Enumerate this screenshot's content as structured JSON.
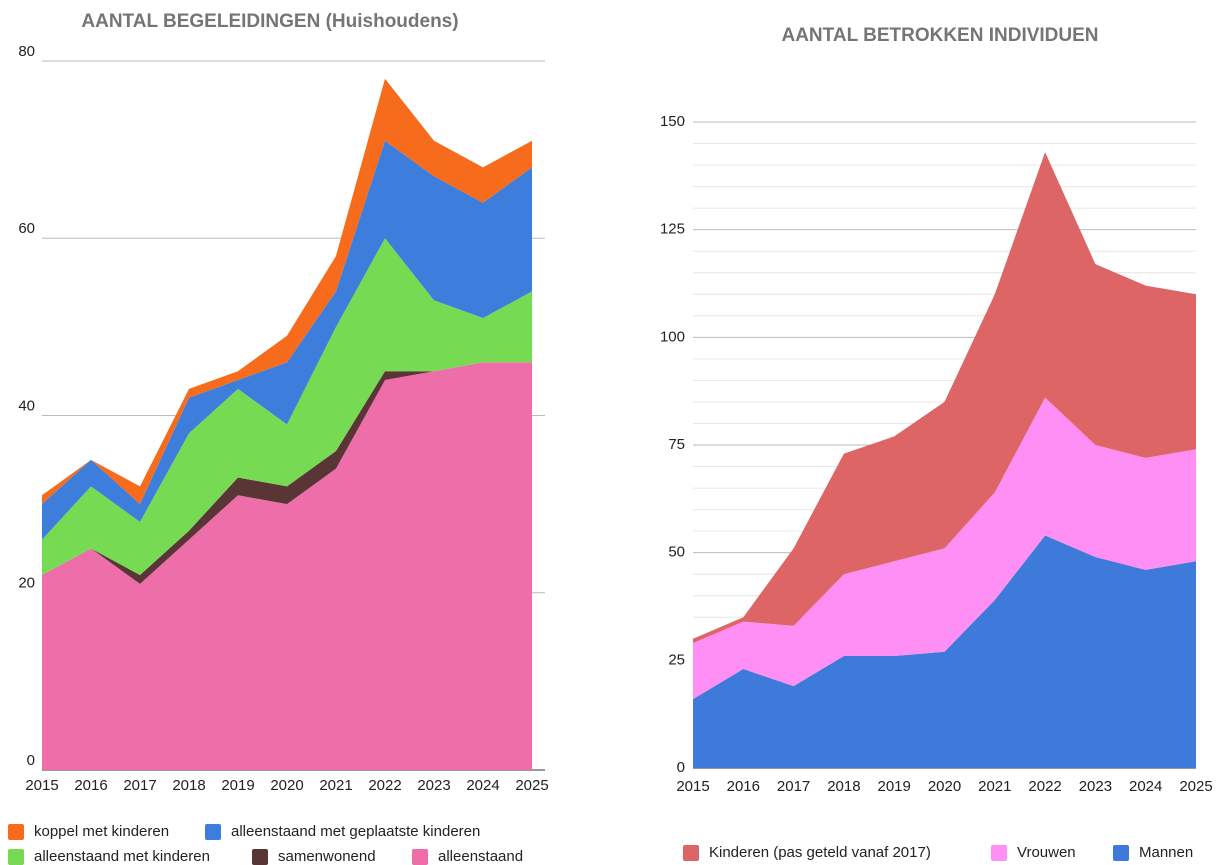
{
  "chart_data": [
    {
      "type": "stacked_area",
      "title": "AANTAL BEGELEIDINGEN (Huishoudens)",
      "categories": [
        "2015",
        "2016",
        "2017",
        "2018",
        "2019",
        "2020",
        "2021",
        "2022",
        "2023",
        "2024",
        "2025"
      ],
      "series": [
        {
          "name": "koppel met kinderen",
          "color": "#f76b1c",
          "values": [
            1,
            0,
            2,
            1,
            1,
            3,
            4,
            7,
            4,
            4,
            3
          ]
        },
        {
          "name": "alleenstaand met geplaatste kinderen",
          "color": "#3d7ddb",
          "values": [
            4,
            3,
            2,
            4,
            1,
            7,
            4,
            11,
            14,
            13,
            14
          ]
        },
        {
          "name": "alleenstaand met kinderen",
          "color": "#76db52",
          "values": [
            4,
            7,
            6,
            11,
            10,
            7,
            14,
            15,
            8,
            5,
            8
          ]
        },
        {
          "name": "samenwonend",
          "color": "#5a3535",
          "values": [
            0,
            0,
            1,
            1,
            2,
            2,
            2,
            1,
            0,
            0,
            0
          ]
        },
        {
          "name": "alleenstaand",
          "color": "#ee6ea9",
          "values": [
            22,
            25,
            21,
            26,
            31,
            30,
            34,
            44,
            45,
            46,
            46
          ]
        }
      ],
      "ylim": [
        0,
        80
      ],
      "yticks": [
        0,
        20,
        40,
        60,
        80
      ],
      "grid": true,
      "minor_grid": false,
      "legend": "bottom"
    },
    {
      "type": "stacked_area",
      "title": "AANTAL BETROKKEN INDIVIDUEN",
      "categories": [
        "2015",
        "2016",
        "2017",
        "2018",
        "2019",
        "2020",
        "2021",
        "2022",
        "2023",
        "2024",
        "2025"
      ],
      "series": [
        {
          "name": "Kinderen (pas geteld vanaf 2017)",
          "color": "#dd6565",
          "values": [
            1,
            1,
            18,
            28,
            29,
            34,
            46,
            57,
            42,
            40,
            36
          ]
        },
        {
          "name": "Vrouwen",
          "color": "#ff8ef5",
          "values": [
            13,
            11,
            14,
            19,
            22,
            24,
            25,
            32,
            26,
            26,
            26
          ]
        },
        {
          "name": "Mannen",
          "color": "#3d7ad9",
          "values": [
            16,
            23,
            19,
            26,
            26,
            27,
            39,
            54,
            49,
            46,
            48
          ]
        }
      ],
      "ylim": [
        0,
        150
      ],
      "yticks": [
        0,
        25,
        50,
        75,
        100,
        125,
        150
      ],
      "grid": true,
      "minor_grid": true,
      "legend": "bottom"
    }
  ]
}
